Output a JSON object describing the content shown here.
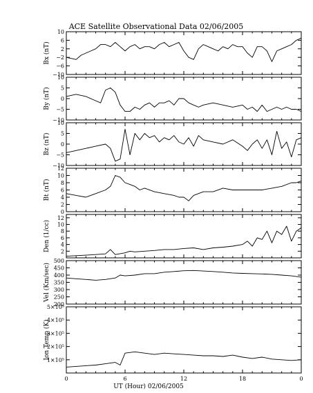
{
  "chart_data": {
    "type": "line",
    "title": "ACE Satellite Observational Data   02/06/2005",
    "xlabel": "UT (Hour)   02/06/2005",
    "x_ticks": [
      "0",
      "6",
      "12",
      "18",
      "0"
    ],
    "x_range": [
      0,
      24
    ],
    "grid": false,
    "panels": [
      {
        "id": "bx",
        "ylabel": "Bx (nT)",
        "ylim": [
          -10,
          10
        ],
        "y_ticks": [
          10,
          6,
          2,
          -2,
          -6,
          -10
        ],
        "y_tick_labels": [
          "10",
          "6",
          "2",
          "−2",
          "−6",
          "−10"
        ],
        "x": [
          0,
          1,
          1.5,
          2,
          2.5,
          3,
          3.5,
          4,
          4.5,
          5,
          5.5,
          6,
          6.5,
          7,
          7.5,
          8,
          8.5,
          9,
          9.5,
          10,
          10.5,
          11,
          11.5,
          12,
          12.5,
          13,
          13.5,
          14,
          14.5,
          15,
          15.5,
          16,
          16.5,
          17,
          17.5,
          18,
          18.5,
          19,
          19.5,
          20,
          20.5,
          21,
          21.5,
          22,
          22.5,
          23,
          23.5,
          24
        ],
        "values": [
          -2,
          -3,
          -1,
          0,
          1,
          2,
          4,
          4,
          3,
          5,
          3,
          1,
          3,
          4,
          2,
          3,
          3,
          2,
          4,
          5,
          3,
          4,
          5,
          1,
          -2,
          -3,
          2,
          4,
          3,
          2,
          1,
          3,
          2,
          4,
          3,
          3,
          0,
          -2,
          3,
          3,
          1,
          -4,
          1,
          2,
          3,
          4,
          6,
          7
        ]
      },
      {
        "id": "by",
        "ylabel": "By (nT)",
        "ylim": [
          -10,
          10
        ],
        "y_ticks": [
          10,
          5,
          0,
          -5,
          -10
        ],
        "y_tick_labels": [
          "10",
          "5",
          "0",
          "−5",
          "−10"
        ],
        "x": [
          0,
          1,
          2,
          3,
          3.5,
          4,
          4.5,
          5,
          5.5,
          6,
          6.5,
          7,
          7.5,
          8,
          8.5,
          9,
          9.5,
          10,
          10.5,
          11,
          11.5,
          12,
          12.5,
          13,
          13.5,
          14,
          15,
          16,
          17,
          18,
          18.5,
          19,
          19.5,
          20,
          20.5,
          21,
          21.5,
          22,
          22.5,
          23,
          23.5,
          24
        ],
        "values": [
          1,
          2,
          1,
          -1,
          -2,
          4,
          5,
          3,
          -3,
          -6,
          -6,
          -4,
          -5,
          -3,
          -2,
          -4,
          -2,
          -2,
          -1,
          -3,
          0,
          0,
          -2,
          -3,
          -4,
          -3,
          -2,
          -3,
          -4,
          -3,
          -5,
          -4,
          -6,
          -3,
          -6,
          -5,
          -4,
          -5,
          -4,
          -5,
          -5,
          -6
        ]
      },
      {
        "id": "bz",
        "ylabel": "Bz (nT)",
        "ylim": [
          -10,
          10
        ],
        "y_ticks": [
          10,
          5,
          0,
          -5,
          -10
        ],
        "y_tick_labels": [
          "10",
          "5",
          "0",
          "−5",
          "−10"
        ],
        "x": [
          0,
          1,
          2,
          3,
          4,
          4.5,
          5,
          5.5,
          6,
          6.5,
          7,
          7.5,
          8,
          8.5,
          9,
          9.5,
          10,
          10.5,
          11,
          11.5,
          12,
          12.5,
          13,
          13.5,
          14,
          15,
          16,
          17,
          18,
          18.5,
          19,
          19.5,
          20,
          20.5,
          21,
          21.5,
          22,
          22.5,
          23,
          23.5,
          24
        ],
        "values": [
          -4,
          -3,
          -2,
          -1,
          0,
          -2,
          -8,
          -7,
          7,
          -5,
          5,
          2,
          5,
          3,
          4,
          1,
          3,
          2,
          4,
          1,
          0,
          3,
          -1,
          4,
          2,
          1,
          0,
          2,
          -1,
          -3,
          0,
          2,
          -2,
          2,
          -5,
          6,
          -2,
          1,
          -6,
          2,
          3
        ]
      },
      {
        "id": "bt",
        "ylabel": "Bt (nT)",
        "ylim": [
          0,
          12
        ],
        "y_ticks": [
          12,
          10,
          8,
          6,
          4,
          2,
          0
        ],
        "y_tick_labels": [
          "12",
          "10",
          "8",
          "6",
          "4",
          "2",
          "0"
        ],
        "x": [
          0,
          1,
          2,
          3,
          4,
          4.5,
          5,
          5.5,
          6,
          6.5,
          7,
          7.5,
          8,
          9,
          10,
          11,
          11.5,
          12,
          12.5,
          13,
          14,
          15,
          16,
          17,
          18,
          19,
          20,
          21,
          22,
          23,
          23.5,
          24
        ],
        "values": [
          5,
          4.5,
          4,
          5,
          6,
          7,
          10,
          9.5,
          8,
          7.5,
          7,
          6,
          6.5,
          5.5,
          5,
          4.5,
          4,
          4,
          3,
          4.5,
          5.5,
          5.5,
          6.5,
          6,
          6,
          6,
          6,
          6.5,
          7,
          8,
          8,
          8.5
        ]
      },
      {
        "id": "den",
        "ylabel": "Den (1/cc)",
        "ylim": [
          0,
          13
        ],
        "y_ticks": [
          12,
          10,
          8,
          6,
          4,
          2
        ],
        "y_tick_labels": [
          "12",
          "10",
          "8",
          "6",
          "4",
          "2"
        ],
        "x": [
          0,
          2,
          4,
          4.5,
          5,
          6,
          6.5,
          7,
          8,
          9,
          10,
          11,
          12,
          13,
          14,
          15,
          16,
          17,
          18,
          18.5,
          19,
          19.5,
          20,
          20.5,
          21,
          21.5,
          22,
          22.5,
          23,
          23.5,
          24
        ],
        "values": [
          0.5,
          0.8,
          1.2,
          2.5,
          1,
          1.5,
          2,
          1.8,
          2,
          2.2,
          2.5,
          2.5,
          2.8,
          3,
          2.5,
          3,
          3.2,
          3.5,
          4,
          5,
          3.5,
          6,
          5.5,
          8,
          4.5,
          8,
          7,
          9.5,
          5,
          8,
          9
        ]
      },
      {
        "id": "vel",
        "ylabel": "Vel (Km/sec)",
        "ylim": [
          200,
          500
        ],
        "y_ticks": [
          500,
          450,
          400,
          350,
          300,
          250,
          200
        ],
        "y_tick_labels": [
          "500",
          "450",
          "400",
          "350",
          "300",
          "250",
          "200"
        ],
        "x": [
          0,
          1,
          2,
          3,
          4,
          5,
          5.5,
          6,
          7,
          8,
          9,
          10,
          11,
          12,
          13,
          14,
          15,
          16,
          17,
          18,
          19,
          20,
          21,
          22,
          23,
          24
        ],
        "values": [
          380,
          375,
          370,
          365,
          370,
          380,
          400,
          395,
          400,
          410,
          410,
          420,
          425,
          430,
          432,
          428,
          425,
          420,
          415,
          412,
          410,
          408,
          405,
          400,
          395,
          385
        ]
      },
      {
        "id": "temp",
        "ylabel": "Ion Temp (K)",
        "ylim": [
          0,
          500000
        ],
        "y_ticks": [
          500000,
          400000,
          300000,
          200000,
          100000
        ],
        "y_tick_labels": [
          "5×10⁵",
          "4×10⁵",
          "3×10⁵",
          "2×10⁵",
          "1×10⁵"
        ],
        "x": [
          0,
          1,
          2,
          3,
          4,
          5,
          5.5,
          6,
          7,
          8,
          9,
          10,
          11,
          12,
          13,
          14,
          15,
          16,
          17,
          18,
          19,
          20,
          21,
          22,
          23,
          24
        ],
        "values": [
          45000,
          50000,
          55000,
          60000,
          70000,
          80000,
          60000,
          150000,
          160000,
          150000,
          140000,
          150000,
          145000,
          140000,
          135000,
          130000,
          130000,
          125000,
          135000,
          120000,
          110000,
          120000,
          105000,
          100000,
          95000,
          100000
        ]
      }
    ]
  }
}
